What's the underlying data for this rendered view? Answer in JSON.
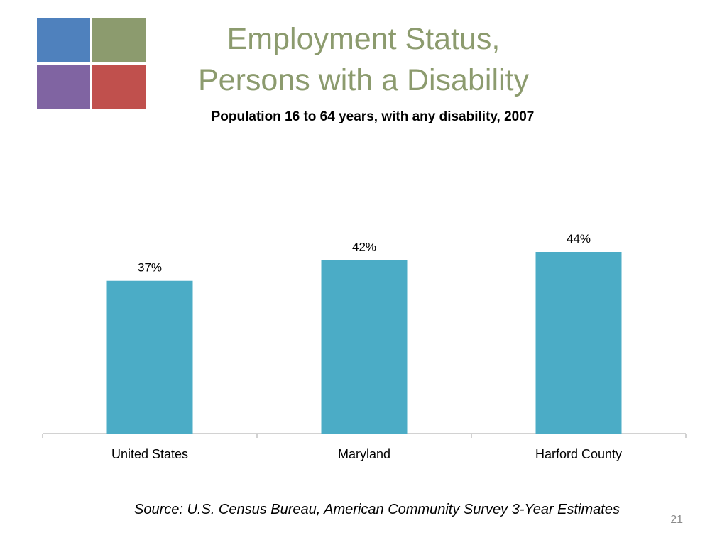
{
  "slide": {
    "title_line1": "Employment Status,",
    "title_line2": "Persons with a Disability",
    "subtitle": "Population 16 to 64 years, with any disability, 2007",
    "source": "Source: U.S. Census Bureau, American Community Survey 3-Year Estimates",
    "page_number": "21"
  },
  "logo": {
    "colors": [
      "#4f81bd",
      "#8c9b6e",
      "#8064a2",
      "#c0504d"
    ]
  },
  "chart_data": {
    "type": "bar",
    "title": "",
    "categories": [
      "United States",
      "Maryland",
      "Harford County"
    ],
    "values": [
      37,
      42,
      44
    ],
    "data_labels": [
      "37%",
      "42%",
      "44%"
    ],
    "unit": "%",
    "ylim": [
      0,
      44
    ],
    "bar_color": "#4bacc6",
    "axis_color": "#a6a6a6",
    "grid": false,
    "legend": "none"
  }
}
